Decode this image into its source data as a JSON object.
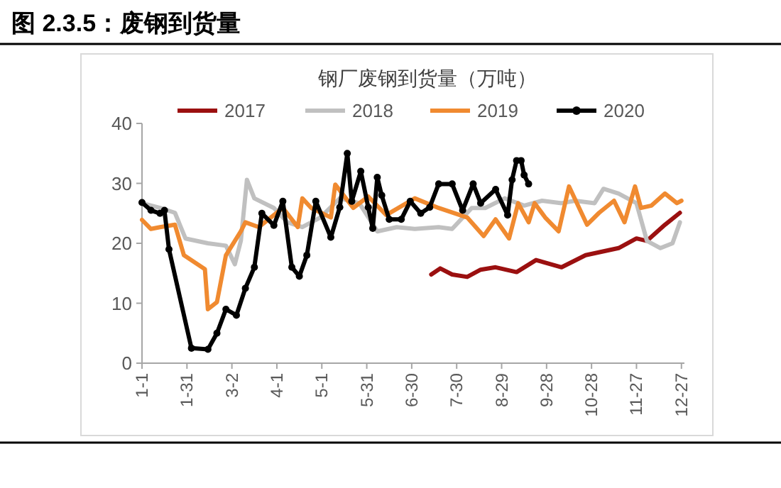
{
  "chart_data": {
    "type": "line",
    "title": "图 2.3.5：废钢到货量",
    "subtitle": "钢厂废钢到货量（万吨）",
    "xlim": [
      "--01-01",
      "--12-29"
    ],
    "ylim": [
      0,
      40
    ],
    "yticks": [
      0,
      10,
      20,
      30,
      40
    ],
    "xticks": [
      {
        "value": "--01-01",
        "label": "1-1"
      },
      {
        "value": "--01-31",
        "label": "1-31"
      },
      {
        "value": "--03-02",
        "label": "3-2"
      },
      {
        "value": "--04-01",
        "label": "4-1"
      },
      {
        "value": "--05-01",
        "label": "5-1"
      },
      {
        "value": "--05-31",
        "label": "5-31"
      },
      {
        "value": "--06-30",
        "label": "6-30"
      },
      {
        "value": "--07-30",
        "label": "7-30"
      },
      {
        "value": "--08-29",
        "label": "8-29"
      },
      {
        "value": "--09-28",
        "label": "9-28"
      },
      {
        "value": "--10-28",
        "label": "10-28"
      },
      {
        "value": "--11-27",
        "label": "11-27"
      },
      {
        "value": "--12-27",
        "label": "12-27"
      }
    ],
    "grid": false,
    "legend": "top",
    "line_style": "solid",
    "series": [
      {
        "name": "2017",
        "color": "#9b1010",
        "x": [
          "--07-13",
          "--07-19",
          "--07-27",
          "--08-06",
          "--08-15",
          "--08-25",
          "--09-08",
          "--09-21",
          "--10-08",
          "--10-24",
          "--11-15",
          "--11-27",
          "--12-04",
          "--12-16",
          "--12-26"
        ],
        "values": [
          14.8,
          15.8,
          14.8,
          14.4,
          15.6,
          16,
          15.2,
          17.2,
          16,
          18,
          19.2,
          20.8,
          20.4,
          23.1,
          25.1
        ]
      },
      {
        "name": "2018",
        "color": "#c0c0c0",
        "x": [
          "--01-01",
          "--01-13",
          "--01-23",
          "--01-30",
          "--02-14",
          "--02-26",
          "--03-04",
          "--03-08",
          "--03-12",
          "--03-17",
          "--03-30",
          "--04-08",
          "--04-18",
          "--04-30",
          "--05-13",
          "--05-26",
          "--06-07",
          "--06-20",
          "--07-02",
          "--07-18",
          "--07-27",
          "--08-09",
          "--08-18",
          "--08-31",
          "--09-13",
          "--09-25",
          "--10-08",
          "--10-17",
          "--10-30",
          "--11-05",
          "--11-15",
          "--11-27",
          "--12-04",
          "--12-13",
          "--12-21",
          "--12-26"
        ],
        "values": [
          26.7,
          25.9,
          25.1,
          20.8,
          20,
          19.6,
          16.5,
          20.4,
          30.6,
          27.5,
          25.9,
          23.5,
          22.7,
          24.3,
          27.5,
          26.7,
          22,
          22.7,
          22.4,
          22.7,
          22.4,
          25.9,
          25.9,
          27.5,
          26.3,
          27.1,
          26.7,
          27.1,
          26.7,
          29.1,
          28.3,
          26.7,
          20.4,
          19.2,
          20,
          23.5
        ]
      },
      {
        "name": "2019",
        "color": "#f08a30",
        "x": [
          "--01-01",
          "--01-07",
          "--01-13",
          "--01-23",
          "--01-29",
          "--02-12",
          "--02-14",
          "--02-20",
          "--02-26",
          "--03-08",
          "--03-11",
          "--03-20",
          "--04-05",
          "--04-15",
          "--04-18",
          "--04-24",
          "--05-07",
          "--05-10",
          "--05-22",
          "--06-01",
          "--06-13",
          "--07-02",
          "--07-18",
          "--08-06",
          "--08-17",
          "--08-25",
          "--09-03",
          "--09-09",
          "--09-16",
          "--09-20",
          "--09-27",
          "--10-06",
          "--10-13",
          "--10-25",
          "--11-02",
          "--11-12",
          "--11-19",
          "--11-26",
          "--11-30",
          "--12-07",
          "--12-16",
          "--12-24",
          "--12-27"
        ],
        "values": [
          23.9,
          22.4,
          22.7,
          23.1,
          18,
          15.7,
          9,
          10.2,
          18,
          22,
          23.5,
          22.7,
          25.9,
          22.7,
          27.5,
          25.9,
          24.3,
          29.8,
          25.9,
          27.8,
          24.7,
          27.5,
          25.9,
          24.3,
          21.2,
          24,
          20.8,
          26.7,
          23.5,
          26.7,
          24.3,
          22,
          29.5,
          23.1,
          25.1,
          27.1,
          23.5,
          29.5,
          25.9,
          26.3,
          28.3,
          26.7,
          27.1
        ]
      },
      {
        "name": "2020",
        "color": "#000000",
        "marker": "circle",
        "x": [
          "--01-01",
          "--01-07",
          "--01-13",
          "--01-16",
          "--01-19",
          "--02-03",
          "--02-14",
          "--02-20",
          "--02-26",
          "--03-05",
          "--03-11",
          "--03-17",
          "--03-22",
          "--03-30",
          "--04-05",
          "--04-11",
          "--04-16",
          "--04-21",
          "--04-27",
          "--05-07",
          "--05-13",
          "--05-18",
          "--05-21",
          "--05-27",
          "--06-01",
          "--06-04",
          "--06-07",
          "--06-10",
          "--06-15",
          "--06-23",
          "--06-29",
          "--07-06",
          "--07-12",
          "--07-18",
          "--07-27",
          "--08-03",
          "--08-10",
          "--08-15",
          "--08-25",
          "--09-02",
          "--09-05",
          "--09-08",
          "--09-11",
          "--09-13",
          "--09-16"
        ],
        "values": [
          26.8,
          25.5,
          25,
          25.5,
          19,
          2.5,
          2.3,
          5,
          9,
          8,
          12.5,
          16,
          25,
          23,
          27,
          16,
          14.5,
          18,
          27,
          21,
          26,
          35,
          27,
          32,
          26,
          22.5,
          31,
          28,
          24,
          24,
          27,
          25,
          26,
          29.9,
          29.9,
          25.5,
          29.9,
          26.7,
          29,
          24.7,
          30.6,
          33.8,
          33.8,
          31.4,
          29.9
        ]
      }
    ]
  }
}
